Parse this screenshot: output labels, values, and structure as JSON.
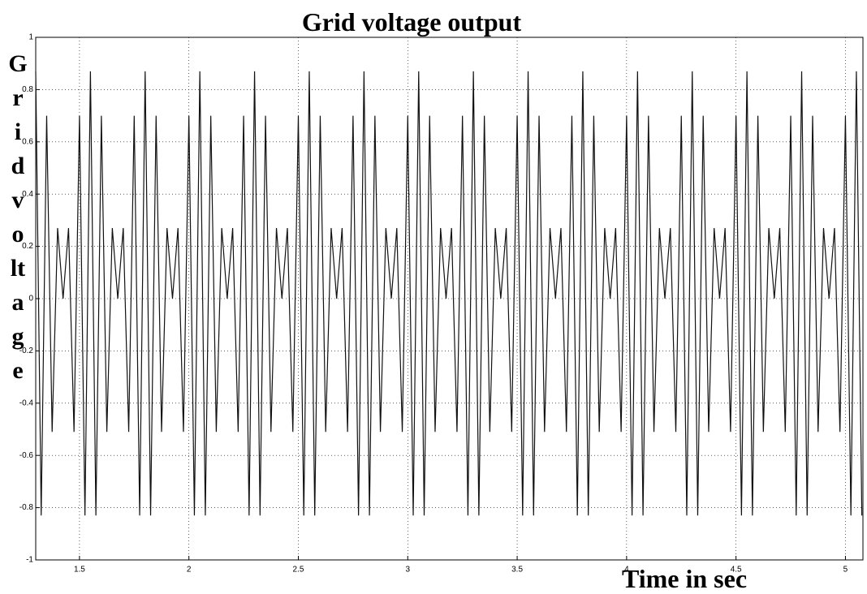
{
  "chart_data": {
    "type": "line",
    "title": "Grid voltage output",
    "ylabel": "Grid voltage",
    "xlabel": "Time in sec",
    "x": [
      1.3,
      1.325,
      1.35,
      1.375,
      1.4,
      1.425,
      1.45,
      1.475,
      1.5,
      1.525,
      1.55,
      1.575,
      1.6,
      1.625,
      1.65,
      1.675,
      1.7,
      1.725,
      1.75,
      1.775,
      1.8,
      1.825,
      1.85,
      1.875,
      1.9,
      1.925,
      1.95,
      1.975,
      2,
      2.025,
      2.05,
      2.075,
      2.1,
      2.125,
      2.15,
      2.175,
      2.2,
      2.225,
      2.25,
      2.275,
      2.3,
      2.325,
      2.35,
      2.375,
      2.4,
      2.425,
      2.45,
      2.475,
      2.5,
      2.525,
      2.55,
      2.575,
      2.6,
      2.625,
      2.65,
      2.675,
      2.7,
      2.725,
      2.75,
      2.775,
      2.8,
      2.825,
      2.85,
      2.875,
      2.9,
      2.925,
      2.95,
      2.975,
      3,
      3.025,
      3.05,
      3.075,
      3.1,
      3.125,
      3.15,
      3.175,
      3.2,
      3.225,
      3.25,
      3.275,
      3.3,
      3.325,
      3.35,
      3.375,
      3.4,
      3.425,
      3.45,
      3.475,
      3.5,
      3.525,
      3.55,
      3.575,
      3.6,
      3.625,
      3.65,
      3.675,
      3.7,
      3.725,
      3.75,
      3.775,
      3.8,
      3.825,
      3.85,
      3.875,
      3.9,
      3.925,
      3.95,
      3.975,
      4,
      4.025,
      4.05,
      4.075,
      4.1,
      4.125,
      4.15,
      4.175,
      4.2,
      4.225,
      4.25,
      4.275,
      4.3,
      4.325,
      4.35,
      4.375,
      4.4,
      4.425,
      4.45,
      4.475,
      4.5,
      4.525,
      4.55,
      4.575,
      4.6,
      4.625,
      4.65,
      4.675,
      4.7,
      4.725,
      4.75,
      4.775,
      4.8,
      4.825,
      4.85,
      4.875,
      4.9,
      4.925,
      4.95,
      4.975,
      5,
      5.025,
      5.05,
      5.075
    ],
    "series": [
      {
        "color": "#111111",
        "values": [
          0.87,
          -0.83,
          0.7,
          -0.51,
          0.27,
          0,
          0.27,
          -0.51,
          0.7,
          -0.83,
          0.87,
          -0.83,
          0.7,
          -0.51,
          0.27,
          0,
          0.27,
          -0.51,
          0.7,
          -0.83,
          0.87,
          -0.83,
          0.7,
          -0.51,
          0.27,
          0,
          0.27,
          -0.51,
          0.7,
          -0.83,
          0.87,
          -0.83,
          0.7,
          -0.51,
          0.27,
          0,
          0.27,
          -0.51,
          0.7,
          -0.83,
          0.87,
          -0.83,
          0.7,
          -0.51,
          0.27,
          0,
          0.27,
          -0.51,
          0.7,
          -0.83,
          0.87,
          -0.83,
          0.7,
          -0.51,
          0.27,
          0,
          0.27,
          -0.51,
          0.7,
          -0.83,
          0.87,
          -0.83,
          0.7,
          -0.51,
          0.27,
          0,
          0.27,
          -0.51,
          0.7,
          -0.83,
          0.87,
          -0.83,
          0.7,
          -0.51,
          0.27,
          0,
          0.27,
          -0.51,
          0.7,
          -0.83,
          0.87,
          -0.83,
          0.7,
          -0.51,
          0.27,
          0,
          0.27,
          -0.51,
          0.7,
          -0.83,
          0.87,
          -0.83,
          0.7,
          -0.51,
          0.27,
          0,
          0.27,
          -0.51,
          0.7,
          -0.83,
          0.87,
          -0.83,
          0.7,
          -0.51,
          0.27,
          0,
          0.27,
          -0.51,
          0.7,
          -0.83,
          0.87,
          -0.83,
          0.7,
          -0.51,
          0.27,
          0,
          0.27,
          -0.51,
          0.7,
          -0.83,
          0.87,
          -0.83,
          0.7,
          -0.51,
          0.27,
          0,
          0.27,
          -0.51,
          0.7,
          -0.83,
          0.87,
          -0.83,
          0.7,
          -0.51,
          0.27,
          0,
          0.27,
          -0.51,
          0.7,
          -0.83,
          0.87,
          -0.83,
          0.7,
          -0.51,
          0.27,
          0,
          0.27,
          -0.51,
          0.7,
          -0.83,
          0.87,
          -0.83
        ]
      }
    ],
    "xlim": [
      1.3,
      5.08
    ],
    "xticks": [
      1.5,
      2,
      2.5,
      3,
      3.5,
      4,
      4.5,
      5
    ],
    "ylim": [
      -1,
      1
    ],
    "yticks": [
      -1,
      -0.8,
      -0.6,
      -0.4,
      -0.2,
      0,
      0.2,
      0.4,
      0.6,
      0.8,
      1
    ],
    "grid": true
  }
}
